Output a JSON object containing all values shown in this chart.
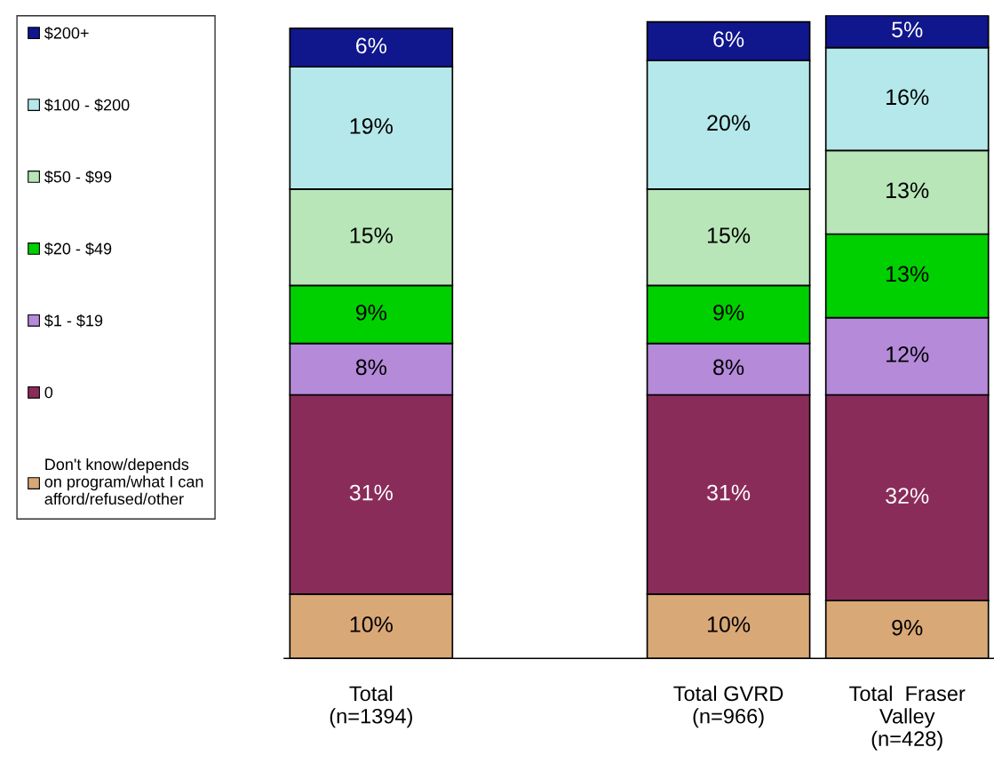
{
  "chart_data": {
    "type": "bar",
    "stacked": true,
    "legend": "left",
    "grid": false,
    "categories": [
      "Total\n(n=1394)",
      null,
      "Total GVRD\n(n=966)",
      "Total  Fraser\nValley\n(n=428)"
    ],
    "series": [
      {
        "name": "Don't know/depends\non program/what I can\nafford/refused/other",
        "color": "#d9a877",
        "values": [
          10,
          null,
          10,
          9
        ],
        "value_labels": [
          "10%",
          null,
          "10%",
          "9%"
        ]
      },
      {
        "name": "0",
        "color": "#8a2c5a",
        "values": [
          31,
          null,
          31,
          32
        ],
        "value_labels": [
          "31%",
          null,
          "31%",
          "32%"
        ]
      },
      {
        "name": "$1 - $19",
        "color": "#b48ad9",
        "values": [
          8,
          null,
          8,
          12
        ],
        "value_labels": [
          "8%",
          null,
          "8%",
          "12%"
        ]
      },
      {
        "name": "$20 - $49",
        "color": "#00d000",
        "values": [
          9,
          null,
          9,
          13
        ],
        "value_labels": [
          "9%",
          null,
          "9%",
          "13%"
        ]
      },
      {
        "name": "$50 - $99",
        "color": "#b8e6b8",
        "values": [
          15,
          null,
          15,
          13
        ],
        "value_labels": [
          "15%",
          null,
          "15%",
          "13%"
        ]
      },
      {
        "name": "$100 - $200",
        "color": "#b5e8ea",
        "values": [
          19,
          null,
          20,
          16
        ],
        "value_labels": [
          "19%",
          null,
          "20%",
          "16%"
        ]
      },
      {
        "name": "$200+",
        "color": "#10168c",
        "values": [
          6,
          null,
          6,
          5
        ],
        "value_labels": [
          "6%",
          null,
          "6%",
          "5%"
        ]
      }
    ]
  }
}
